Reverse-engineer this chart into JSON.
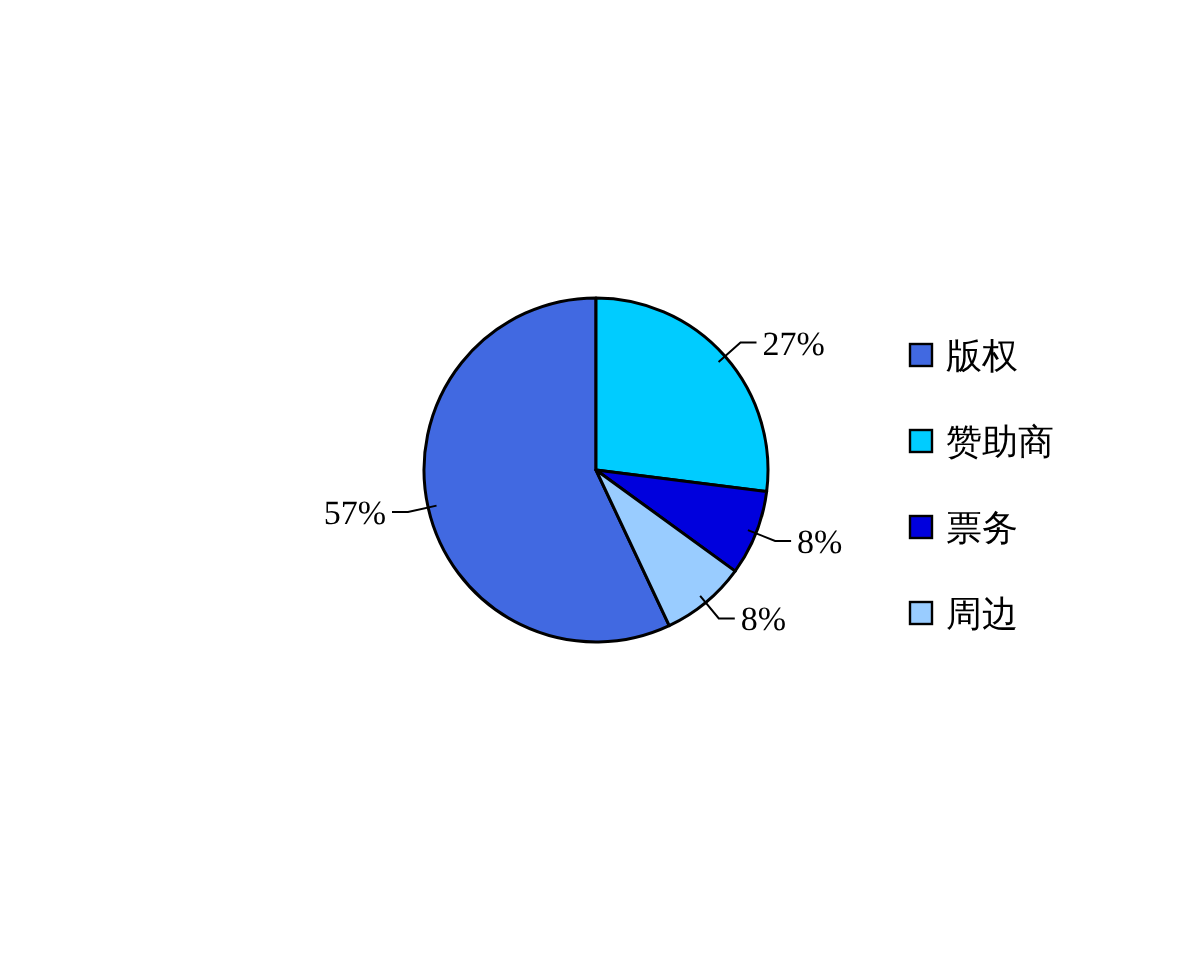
{
  "chart_data": {
    "type": "pie",
    "categories": [
      "版权",
      "赞助商",
      "票务",
      "周边"
    ],
    "values": [
      57,
      27,
      8,
      8
    ],
    "colors": [
      "#4169e1",
      "#00ccff",
      "#0000dd",
      "#99ccff"
    ],
    "value_labels": [
      "57%",
      "27%",
      "8%",
      "8%"
    ],
    "legend": "right"
  }
}
